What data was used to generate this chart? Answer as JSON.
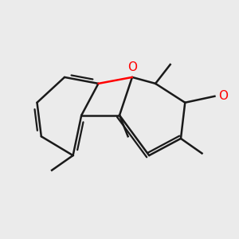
{
  "background_color": "#ebebeb",
  "line_color": "#1a1a1a",
  "o_color": "#ff0000",
  "line_width": 1.8,
  "figsize": [
    3.0,
    3.0
  ],
  "dpi": 100
}
